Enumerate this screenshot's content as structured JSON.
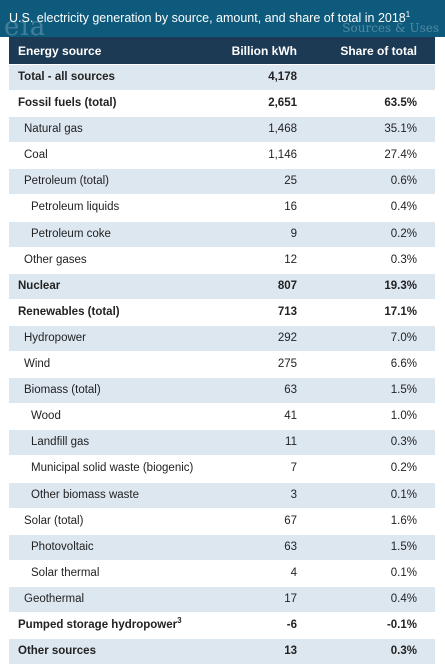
{
  "title": {
    "text": "U.S. electricity generation by source, amount, and share of total in 2018",
    "footnote_mark": "1",
    "watermark_logo": "eia",
    "watermark_text": "Sources & Uses"
  },
  "header": {
    "source": "Energy source",
    "billion_kwh": "Billion kWh",
    "share": "Share of total"
  },
  "rows": [
    {
      "source": "Total - all sources",
      "billion_kwh": "4,178",
      "share": "",
      "bold": true,
      "level": 0
    },
    {
      "source": "Fossil fuels (total)",
      "billion_kwh": "2,651",
      "share": "63.5%",
      "bold": true,
      "level": 0
    },
    {
      "source": "Natural gas",
      "billion_kwh": "1,468",
      "share": "35.1%",
      "bold": false,
      "level": 1
    },
    {
      "source": "Coal",
      "billion_kwh": "1,146",
      "share": "27.4%",
      "bold": false,
      "level": 1
    },
    {
      "source": "Petroleum (total)",
      "billion_kwh": "25",
      "share": "0.6%",
      "bold": false,
      "level": 1
    },
    {
      "source": "Petroleum liquids",
      "billion_kwh": "16",
      "share": "0.4%",
      "bold": false,
      "level": 2
    },
    {
      "source": "Petroleum coke",
      "billion_kwh": "9",
      "share": "0.2%",
      "bold": false,
      "level": 2
    },
    {
      "source": "Other gases",
      "billion_kwh": "12",
      "share": "0.3%",
      "bold": false,
      "level": 1
    },
    {
      "source": "Nuclear",
      "billion_kwh": "807",
      "share": "19.3%",
      "bold": true,
      "level": 0
    },
    {
      "source": "Renewables (total)",
      "billion_kwh": "713",
      "share": "17.1%",
      "bold": true,
      "level": 0
    },
    {
      "source": "Hydropower",
      "billion_kwh": "292",
      "share": "7.0%",
      "bold": false,
      "level": 1
    },
    {
      "source": "Wind",
      "billion_kwh": "275",
      "share": "6.6%",
      "bold": false,
      "level": 1
    },
    {
      "source": "Biomass (total)",
      "billion_kwh": "63",
      "share": "1.5%",
      "bold": false,
      "level": 1
    },
    {
      "source": "Wood",
      "billion_kwh": "41",
      "share": "1.0%",
      "bold": false,
      "level": 2
    },
    {
      "source": "Landfill gas",
      "billion_kwh": "11",
      "share": "0.3%",
      "bold": false,
      "level": 2
    },
    {
      "source": "Municipal solid waste (biogenic)",
      "billion_kwh": "7",
      "share": "0.2%",
      "bold": false,
      "level": 2
    },
    {
      "source": "Other biomass waste",
      "billion_kwh": "3",
      "share": "0.1%",
      "bold": false,
      "level": 2
    },
    {
      "source": "Solar (total)",
      "billion_kwh": "67",
      "share": "1.6%",
      "bold": false,
      "level": 1
    },
    {
      "source": "Photovoltaic",
      "billion_kwh": "63",
      "share": "1.5%",
      "bold": false,
      "level": 2
    },
    {
      "source": "Solar thermal",
      "billion_kwh": "4",
      "share": "0.1%",
      "bold": false,
      "level": 2
    },
    {
      "source": "Geothermal",
      "billion_kwh": "17",
      "share": "0.4%",
      "bold": false,
      "level": 1
    },
    {
      "source": "Pumped storage hydropower",
      "sup": "3",
      "billion_kwh": "-6",
      "share": "-0.1%",
      "bold": true,
      "level": 0
    },
    {
      "source": "Other sources",
      "billion_kwh": "13",
      "share": "0.3%",
      "bold": true,
      "level": 0
    }
  ]
}
